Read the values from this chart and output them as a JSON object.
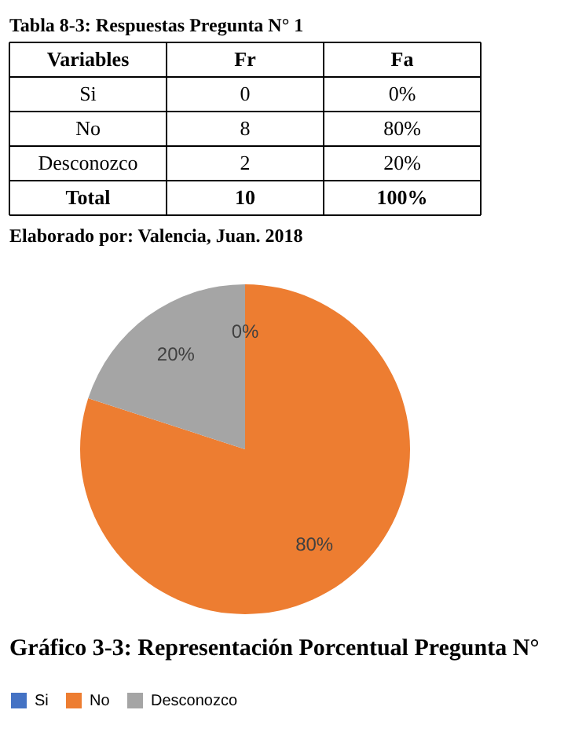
{
  "chart_data": {
    "type": "pie",
    "title": "Gráfico 3-3: Representación Porcentual Pregunta N°",
    "categories": [
      "Si",
      "No",
      "Desconozco"
    ],
    "values": [
      0,
      80,
      20
    ],
    "colors": [
      "#4472c4",
      "#ed7d31",
      "#a5a5a5"
    ],
    "value_labels": [
      "0%",
      "80%",
      "20%"
    ],
    "legend": "bottom",
    "annotations": [
      "Tabla 8-3: Respuestas Pregunta N° 1",
      "Variables",
      "Fr",
      "Fa",
      "Si",
      "0",
      "0%",
      "No",
      "8",
      "80%",
      "Desconozco",
      "2",
      "20%",
      "Total",
      "10",
      "100%",
      "Elaborado por: Valencia, Juan. 2018"
    ]
  }
}
